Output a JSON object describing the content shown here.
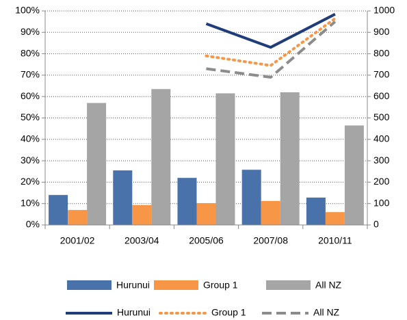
{
  "chart_data": {
    "type": "bar",
    "categories": [
      "2001/02",
      "2003/04",
      "2005/06",
      "2007/08",
      "2010/11"
    ],
    "series": [
      {
        "name": "Hurunui",
        "type": "bar",
        "color": "#4a72aa",
        "values": [
          14,
          25.5,
          22,
          25.8,
          12.8
        ]
      },
      {
        "name": "Group 1",
        "type": "bar",
        "color": "#f79646",
        "values": [
          7,
          9.3,
          10.2,
          11.2,
          6
        ]
      },
      {
        "name": "All NZ",
        "type": "bar",
        "color": "#a5a5a5",
        "values": [
          57,
          63.5,
          61.5,
          62,
          46.5
        ]
      },
      {
        "name": "Hurunui",
        "type": "line",
        "axis": "y2",
        "color": "#1f3d7a",
        "dash": "solid",
        "values": [
          null,
          null,
          940,
          830,
          985
        ]
      },
      {
        "name": "Group 1",
        "type": "line",
        "axis": "y2",
        "color": "#f79646",
        "dash": "dotted",
        "values": [
          null,
          null,
          790,
          745,
          965
        ]
      },
      {
        "name": "All NZ",
        "type": "line",
        "axis": "y2",
        "color": "#8c8c8c",
        "dash": "dashed",
        "values": [
          null,
          null,
          730,
          690,
          950
        ]
      }
    ],
    "ylim": [
      0,
      100
    ],
    "yticks": [
      {
        "value": 0,
        "label": "0%"
      },
      {
        "value": 10,
        "label": "10%"
      },
      {
        "value": 20,
        "label": "20%"
      },
      {
        "value": 30,
        "label": "30%"
      },
      {
        "value": 40,
        "label": "40%"
      },
      {
        "value": 50,
        "label": "50%"
      },
      {
        "value": 60,
        "label": "60%"
      },
      {
        "value": 70,
        "label": "70%"
      },
      {
        "value": 80,
        "label": "80%"
      },
      {
        "value": 90,
        "label": "90%"
      },
      {
        "value": 100,
        "label": "100%"
      }
    ],
    "y2lim": [
      0,
      1000
    ],
    "y2ticks": [
      0,
      100,
      200,
      300,
      400,
      500,
      600,
      700,
      800,
      900,
      1000
    ],
    "grid": true
  }
}
